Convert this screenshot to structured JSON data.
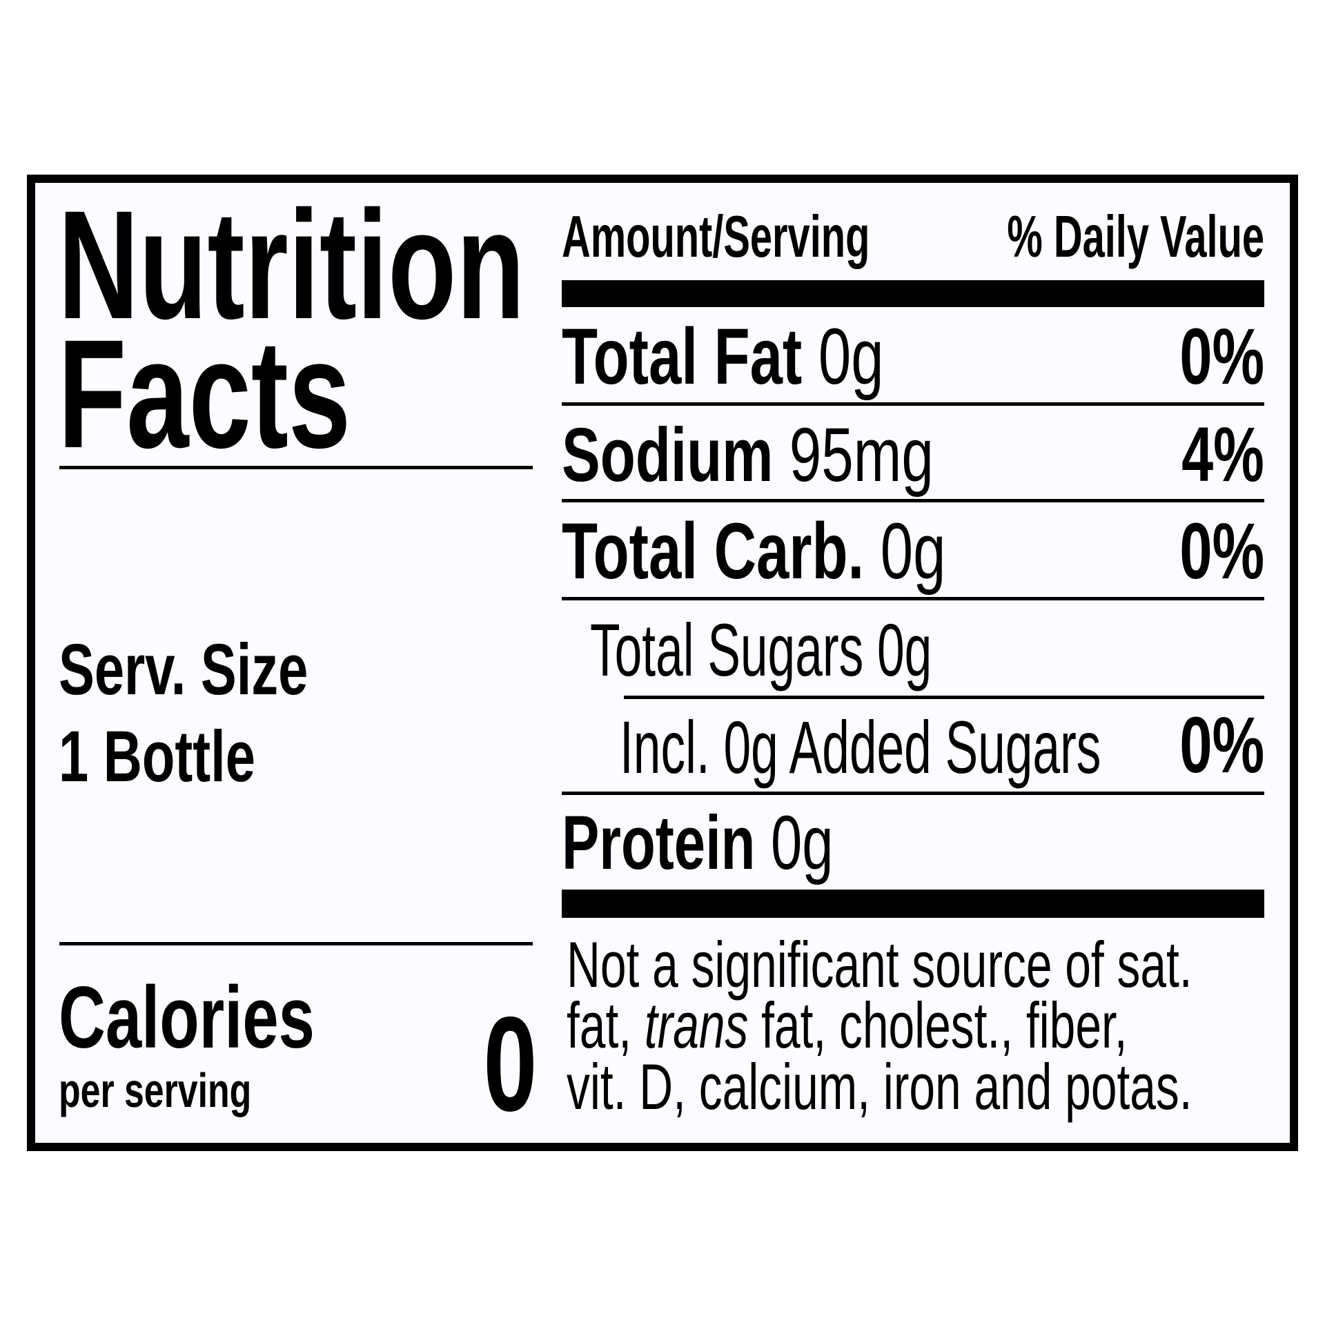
{
  "title": {
    "line1": "Nutrition",
    "line2": "Facts"
  },
  "serving": {
    "label": "Serv. Size",
    "value": "1 Bottle"
  },
  "calories": {
    "label": "Calories",
    "sublabel": "per serving",
    "value": "0"
  },
  "header": {
    "amount": "Amount/Serving",
    "daily_value": "% Daily Value"
  },
  "nutrients": [
    {
      "name": "Total Fat",
      "amount": "0g",
      "dv": "0%"
    },
    {
      "name": "Sodium",
      "amount": "95mg",
      "dv": "4%"
    },
    {
      "name": "Total Carb.",
      "amount": "0g",
      "dv": "0%"
    },
    {
      "name": "Total Sugars 0g"
    },
    {
      "name": "Incl. 0g Added Sugars",
      "dv": "0%"
    },
    {
      "name": "Protein",
      "amount": "0g"
    }
  ],
  "footnote": {
    "line1": "Not a significant source of sat.",
    "line2_a": "fat, ",
    "line2_italic": "trans",
    "line2_b": " fat, cholest., fiber,",
    "line3": "vit. D, calcium, iron and potas."
  }
}
